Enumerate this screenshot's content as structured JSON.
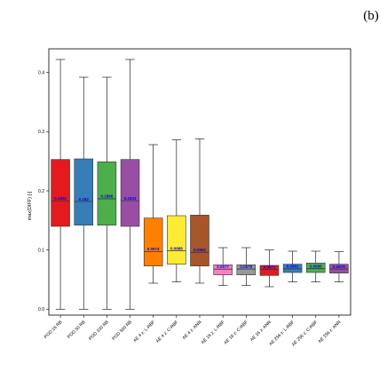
{
  "panel_label": "(b)",
  "chart_data": {
    "type": "box",
    "title": "",
    "xlabel": "",
    "ylabel": "max(DIFF) [-]",
    "ylim": [
      -0.01,
      0.44
    ],
    "yticks": [
      0.0,
      0.1,
      0.2,
      0.3,
      0.4
    ],
    "ytick_labels": [
      "0.0",
      "0.1",
      "0.2",
      "0.3",
      "0.4"
    ],
    "grid": false,
    "categories": [
      "POD 16 RB",
      "POD 50 RB",
      "POD 100 RB",
      "POD 500 RB",
      "AE 4 z: L-RBF",
      "AE 4 z: C-RBF",
      "AE 4 z: ANN",
      "AE 16 z: L-RBF",
      "AE 16 z: C-RBF",
      "AE 16 z: ANN",
      "AE 256 z: L-RBF",
      "AE 256 z: C-RBF",
      "AE 256 z: ANN"
    ],
    "colors": [
      "#e41a1c",
      "#377eb8",
      "#4daf4a",
      "#984ea3",
      "#ff7f00",
      "#ffeb33",
      "#a65628",
      "#f781bf",
      "#999999",
      "#e41a1c",
      "#377eb8",
      "#4daf4a",
      "#984ea3"
    ],
    "series": [
      {
        "category": "POD 16 RB",
        "whislo": 0.0,
        "q1": 0.14,
        "med": 0.1831,
        "q3": 0.253,
        "whishi": 0.422,
        "label": "0.1831"
      },
      {
        "category": "POD 50 RB",
        "whislo": 0.0,
        "q1": 0.142,
        "med": 0.182,
        "q3": 0.254,
        "whishi": 0.392,
        "label": "0.182"
      },
      {
        "category": "POD 100 RB",
        "whislo": 0.0,
        "q1": 0.142,
        "med": 0.1866,
        "q3": 0.249,
        "whishi": 0.392,
        "label": "0.1866"
      },
      {
        "category": "POD 500 RB",
        "whislo": 0.0,
        "q1": 0.14,
        "med": 0.1833,
        "q3": 0.253,
        "whishi": 0.422,
        "label": "0.1833"
      },
      {
        "category": "AE 4 z: L-RBF",
        "whislo": 0.044,
        "q1": 0.073,
        "med": 0.0974,
        "q3": 0.154,
        "whishi": 0.278,
        "label": "0.0974"
      },
      {
        "category": "AE 4 z: C-RBF",
        "whislo": 0.046,
        "q1": 0.076,
        "med": 0.0988,
        "q3": 0.158,
        "whishi": 0.286,
        "label": "0.0988"
      },
      {
        "category": "AE 4 z: ANN",
        "whislo": 0.044,
        "q1": 0.073,
        "med": 0.0962,
        "q3": 0.159,
        "whishi": 0.288,
        "label": "0.0962"
      },
      {
        "category": "AE 16 z: L-RBF",
        "whislo": 0.04,
        "q1": 0.058,
        "med": 0.0677,
        "q3": 0.075,
        "whishi": 0.104,
        "label": "0.0677"
      },
      {
        "category": "AE 16 z: C-RBF",
        "whislo": 0.04,
        "q1": 0.058,
        "med": 0.0679,
        "q3": 0.075,
        "whishi": 0.104,
        "label": "0.0679"
      },
      {
        "category": "AE 16 z: ANN",
        "whislo": 0.038,
        "q1": 0.057,
        "med": 0.0671,
        "q3": 0.074,
        "whishi": 0.1,
        "label": "0.0671"
      },
      {
        "category": "AE 256 z: L-RBF",
        "whislo": 0.046,
        "q1": 0.062,
        "med": 0.0681,
        "q3": 0.076,
        "whishi": 0.098,
        "label": "0.0681"
      },
      {
        "category": "AE 256 z: C-RBF",
        "whislo": 0.046,
        "q1": 0.062,
        "med": 0.0685,
        "q3": 0.078,
        "whishi": 0.098,
        "label": "0.0685"
      },
      {
        "category": "AE 256 z: ANN",
        "whislo": 0.046,
        "q1": 0.061,
        "med": 0.0679,
        "q3": 0.076,
        "whishi": 0.097,
        "label": "0.0679"
      }
    ]
  }
}
